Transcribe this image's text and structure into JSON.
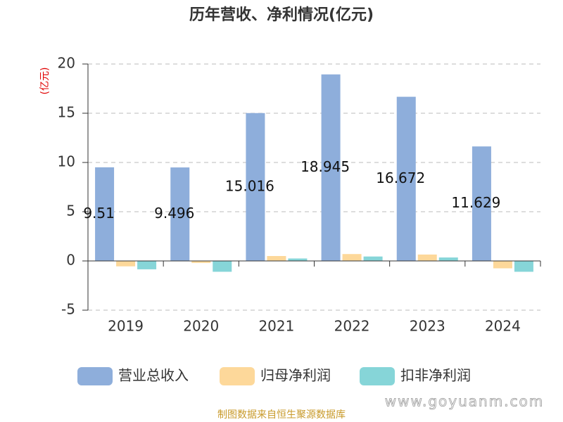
{
  "chart_data": {
    "type": "bar",
    "title": "历年营收、净利情况(亿元)",
    "y_label": "(亿元)",
    "categories": [
      "2019",
      "2020",
      "2021",
      "2022",
      "2023",
      "2024"
    ],
    "series": [
      {
        "name": "营业总收入",
        "color": "#8eaedb",
        "values": [
          9.51,
          9.496,
          15.016,
          18.945,
          16.672,
          11.629
        ]
      },
      {
        "name": "归母净利润",
        "color": "#fdd89a",
        "values": [
          -0.55,
          -0.2,
          0.5,
          0.7,
          0.65,
          -0.75
        ]
      },
      {
        "name": "扣非净利润",
        "color": "#86d5d8",
        "values": [
          -0.85,
          -1.1,
          0.25,
          0.45,
          0.35,
          -1.1
        ]
      }
    ],
    "ylim": [
      -5,
      20
    ],
    "yticks": [
      -5,
      0,
      5,
      10,
      15,
      20
    ],
    "grid": true,
    "source": "制图数据来自恒生聚源数据库",
    "watermark": "www.goyuanm.com"
  }
}
